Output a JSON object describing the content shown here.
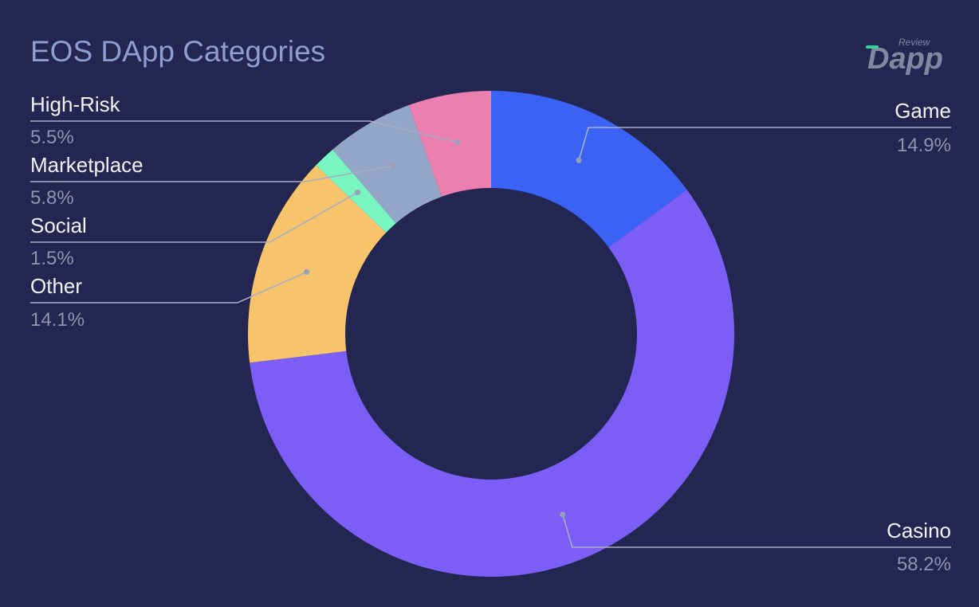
{
  "chart_data": {
    "type": "pie",
    "title": "EOS DApp Categories",
    "categories": [
      "Game",
      "Casino",
      "Other",
      "Social",
      "Marketplace",
      "High-Risk"
    ],
    "values": [
      14.9,
      58.2,
      14.1,
      1.5,
      5.8,
      5.5
    ],
    "value_labels": [
      "14.9%",
      "58.2%",
      "14.1%",
      "1.5%",
      "5.8%",
      "5.5%"
    ],
    "colors": [
      "#3a63f6",
      "#7b5ef5",
      "#f7c46c",
      "#78f5c0",
      "#94a6c8",
      "#ea7fb0"
    ],
    "donut": true,
    "start": "top",
    "direction": "clockwise",
    "legend": "none"
  },
  "logo": {
    "superscript": "Review",
    "wordmark": "Dapp",
    "accent_color": "#2fd49a"
  }
}
